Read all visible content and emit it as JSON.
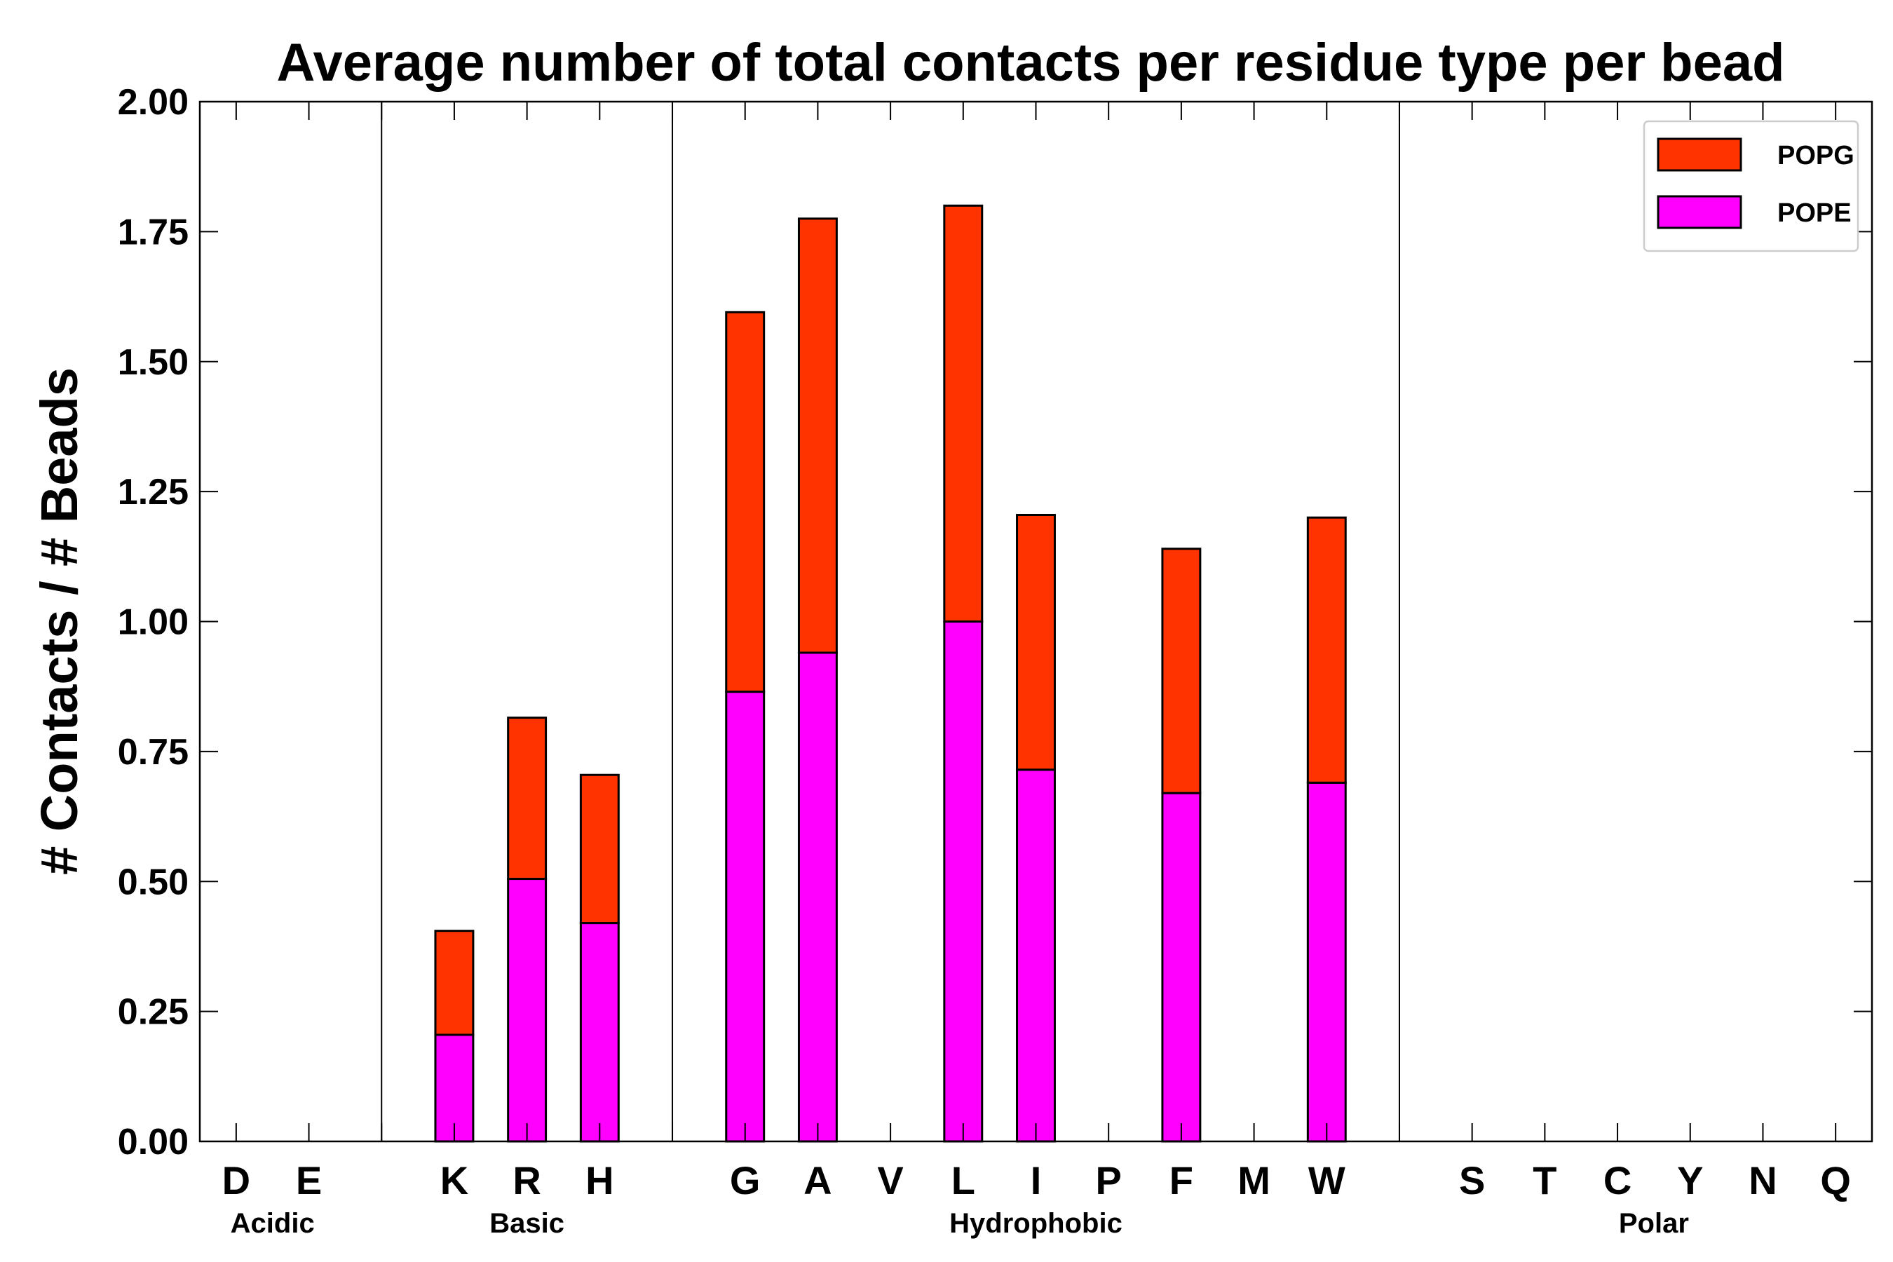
{
  "chart_data": {
    "type": "bar",
    "stacked": true,
    "title": "Average number of total contacts per residue type per bead",
    "ylabel": "# Contacts / # Beads",
    "xlabel": "",
    "ylim": [
      0,
      2.0
    ],
    "yticks": [
      "0.00",
      "0.25",
      "0.50",
      "0.75",
      "1.00",
      "1.25",
      "1.50",
      "1.75",
      "2.00"
    ],
    "categories": [
      "D",
      "E",
      "",
      "K",
      "R",
      "H",
      "",
      "G",
      "A",
      "V",
      "L",
      "I",
      "P",
      "F",
      "M",
      "W",
      "",
      "S",
      "T",
      "C",
      "Y",
      "N",
      "Q"
    ],
    "series": [
      {
        "name": "POPE",
        "color": "#ff00ff",
        "values": [
          0,
          0,
          0,
          0.205,
          0.505,
          0.42,
          0,
          0.865,
          0.94,
          0,
          1.0,
          0.715,
          0,
          0.67,
          0,
          0.69,
          0,
          0,
          0,
          0,
          0,
          0,
          0
        ]
      },
      {
        "name": "POPG",
        "color": "#ff3300",
        "values": [
          0,
          0,
          0,
          0.2,
          0.31,
          0.285,
          0,
          0.73,
          0.835,
          0,
          0.8,
          0.49,
          0,
          0.47,
          0,
          0.51,
          0,
          0,
          0,
          0,
          0,
          0,
          0
        ]
      }
    ],
    "groups": [
      {
        "label": "Acidic",
        "start": 0,
        "end": 1
      },
      {
        "label": "Basic",
        "start": 3,
        "end": 5
      },
      {
        "label": "Hydrophobic",
        "start": 7,
        "end": 15
      },
      {
        "label": "Polar",
        "start": 17,
        "end": 22
      }
    ],
    "separators_after": [
      2,
      6,
      16
    ],
    "legend": {
      "position": "top-right",
      "entries": [
        "POPG",
        "POPE"
      ]
    }
  }
}
